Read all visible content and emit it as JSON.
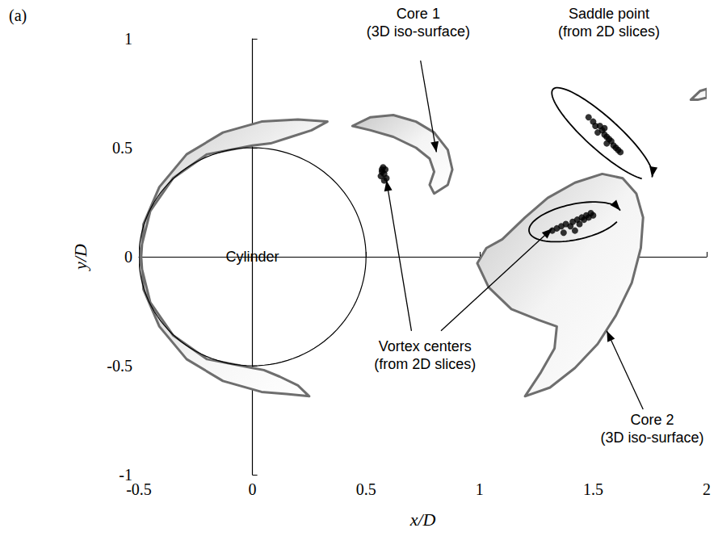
{
  "chart_data": {
    "type": "scatter",
    "title": "(a)",
    "x_label": "x/D",
    "y_label": "y/D",
    "xlim": [
      -0.5,
      2
    ],
    "xticks": [
      -0.5,
      0,
      0.5,
      1,
      1.5,
      2
    ],
    "ylim": [
      -1,
      1
    ],
    "yticks": [
      -1,
      -0.5,
      0,
      0.5,
      1
    ],
    "grid": false,
    "cylinder": {
      "center": [
        0,
        0
      ],
      "radius": 0.5
    },
    "iso_surfaces": [
      [
        [
          -0.49,
          0.0
        ],
        [
          -0.48,
          0.15
        ],
        [
          -0.41,
          0.32
        ],
        [
          -0.29,
          0.47
        ],
        [
          -0.13,
          0.57
        ],
        [
          0.04,
          0.62
        ],
        [
          0.2,
          0.63
        ],
        [
          0.33,
          0.62
        ],
        [
          0.26,
          0.58
        ],
        [
          0.17,
          0.55
        ],
        [
          0.08,
          0.52
        ],
        [
          0.0,
          0.51
        ],
        [
          -0.2,
          0.47
        ],
        [
          -0.35,
          0.36
        ],
        [
          -0.45,
          0.21
        ],
        [
          -0.5,
          0.0
        ]
      ],
      [
        [
          -0.49,
          0.0
        ],
        [
          -0.48,
          -0.15
        ],
        [
          -0.41,
          -0.32
        ],
        [
          -0.29,
          -0.47
        ],
        [
          -0.13,
          -0.57
        ],
        [
          0.04,
          -0.62
        ],
        [
          0.15,
          -0.63
        ],
        [
          0.25,
          -0.64
        ],
        [
          0.2,
          -0.59
        ],
        [
          0.12,
          -0.55
        ],
        [
          0.05,
          -0.52
        ],
        [
          0.0,
          -0.51
        ],
        [
          -0.2,
          -0.47
        ],
        [
          -0.35,
          -0.36
        ],
        [
          -0.45,
          -0.21
        ],
        [
          -0.5,
          0.0
        ]
      ],
      [
        [
          0.44,
          0.6
        ],
        [
          0.52,
          0.64
        ],
        [
          0.62,
          0.65
        ],
        [
          0.72,
          0.62
        ],
        [
          0.8,
          0.57
        ],
        [
          0.86,
          0.49
        ],
        [
          0.88,
          0.4
        ],
        [
          0.86,
          0.33
        ],
        [
          0.8,
          0.29
        ],
        [
          0.78,
          0.33
        ],
        [
          0.8,
          0.39
        ],
        [
          0.78,
          0.45
        ],
        [
          0.72,
          0.5
        ],
        [
          0.62,
          0.55
        ],
        [
          0.52,
          0.58
        ]
      ],
      [
        [
          1.1,
          0.08
        ],
        [
          1.2,
          0.18
        ],
        [
          1.3,
          0.27
        ],
        [
          1.42,
          0.34
        ],
        [
          1.54,
          0.38
        ],
        [
          1.63,
          0.36
        ],
        [
          1.69,
          0.29
        ],
        [
          1.72,
          0.18
        ],
        [
          1.71,
          0.04
        ],
        [
          1.67,
          -0.12
        ],
        [
          1.6,
          -0.27
        ],
        [
          1.52,
          -0.4
        ],
        [
          1.42,
          -0.51
        ],
        [
          1.31,
          -0.6
        ],
        [
          1.2,
          -0.64
        ],
        [
          1.27,
          -0.53
        ],
        [
          1.33,
          -0.42
        ],
        [
          1.34,
          -0.32
        ],
        [
          1.26,
          -0.29
        ],
        [
          1.14,
          -0.24
        ],
        [
          1.04,
          -0.14
        ],
        [
          0.99,
          -0.03
        ],
        [
          1.03,
          0.04
        ]
      ],
      [
        [
          1.93,
          0.72
        ],
        [
          1.97,
          0.76
        ],
        [
          2.0,
          0.77
        ],
        [
          2.0,
          0.73
        ],
        [
          1.96,
          0.72
        ]
      ]
    ],
    "series": [
      {
        "color": "#000000",
        "marker": "circle",
        "values": [
          [
            0.565,
            0.37
          ],
          [
            0.57,
            0.39
          ],
          [
            0.575,
            0.41
          ],
          [
            0.58,
            0.38
          ],
          [
            0.585,
            0.4
          ],
          [
            0.59,
            0.36
          ],
          [
            0.58,
            0.35
          ],
          [
            0.57,
            0.4
          ]
        ]
      },
      {
        "color": "#000000",
        "marker": "circle",
        "values": [
          [
            1.32,
            0.12
          ],
          [
            1.34,
            0.13
          ],
          [
            1.36,
            0.14
          ],
          [
            1.38,
            0.15
          ],
          [
            1.4,
            0.14
          ],
          [
            1.41,
            0.16
          ],
          [
            1.43,
            0.17
          ],
          [
            1.44,
            0.15
          ],
          [
            1.45,
            0.18
          ],
          [
            1.46,
            0.17
          ],
          [
            1.47,
            0.19
          ],
          [
            1.48,
            0.18
          ],
          [
            1.49,
            0.2
          ],
          [
            1.5,
            0.19
          ],
          [
            1.42,
            0.12
          ],
          [
            1.37,
            0.11
          ]
        ]
      },
      {
        "color": "#000000",
        "marker": "circle",
        "values": [
          [
            1.48,
            0.64
          ],
          [
            1.5,
            0.62
          ],
          [
            1.51,
            0.6
          ],
          [
            1.53,
            0.6
          ],
          [
            1.54,
            0.58
          ],
          [
            1.55,
            0.56
          ],
          [
            1.56,
            0.55
          ],
          [
            1.57,
            0.54
          ],
          [
            1.58,
            0.53
          ],
          [
            1.59,
            0.51
          ],
          [
            1.6,
            0.5
          ],
          [
            1.61,
            0.49
          ],
          [
            1.62,
            0.48
          ],
          [
            1.52,
            0.57
          ],
          [
            1.56,
            0.52
          ],
          [
            1.55,
            0.59
          ]
        ]
      }
    ],
    "annotations": [
      {
        "lines": [
          "Cylinder"
        ]
      },
      {
        "lines": [
          "Core 1",
          "(3D iso-surface)"
        ]
      },
      {
        "lines": [
          "Saddle point",
          "(from 2D slices)"
        ]
      },
      {
        "lines": [
          "Vortex centers",
          "(from 2D slices)"
        ]
      },
      {
        "lines": [
          "Core 2",
          "(3D iso-surface)"
        ]
      }
    ]
  }
}
